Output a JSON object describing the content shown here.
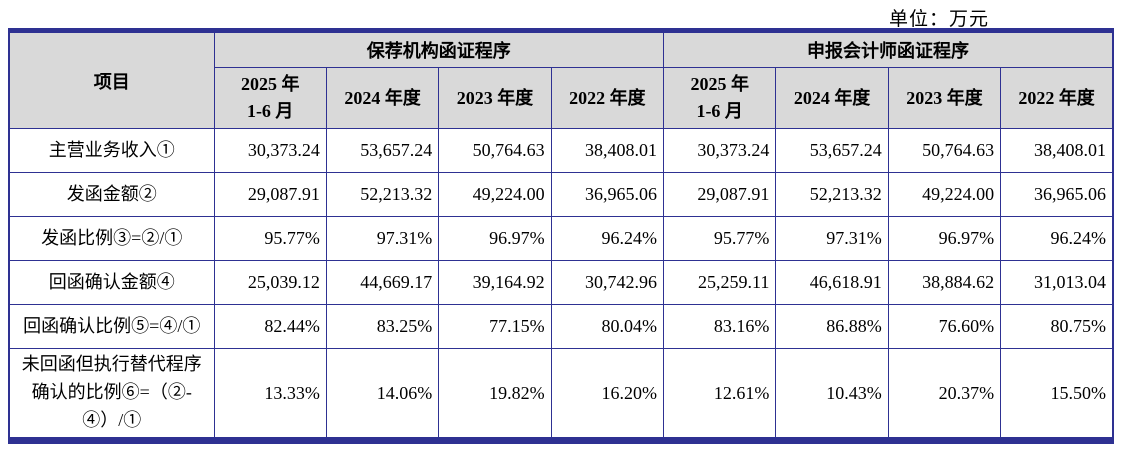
{
  "unit_label": "单位：万元",
  "table": {
    "item_header": "项目",
    "groups": [
      {
        "label": "保荐机构函证程序",
        "periods": [
          "2025 年\n1-6 月",
          "2024 年度",
          "2023 年度",
          "2022 年度"
        ]
      },
      {
        "label": "申报会计师函证程序",
        "periods": [
          "2025 年\n1-6 月",
          "2024 年度",
          "2023 年度",
          "2022 年度"
        ]
      }
    ],
    "rows": [
      {
        "label": "主营业务收入①",
        "values": [
          "30,373.24",
          "53,657.24",
          "50,764.63",
          "38,408.01",
          "30,373.24",
          "53,657.24",
          "50,764.63",
          "38,408.01"
        ]
      },
      {
        "label": "发函金额②",
        "values": [
          "29,087.91",
          "52,213.32",
          "49,224.00",
          "36,965.06",
          "29,087.91",
          "52,213.32",
          "49,224.00",
          "36,965.06"
        ]
      },
      {
        "label": "发函比例③=②/①",
        "values": [
          "95.77%",
          "97.31%",
          "96.97%",
          "96.24%",
          "95.77%",
          "97.31%",
          "96.97%",
          "96.24%"
        ]
      },
      {
        "label": "回函确认金额④",
        "values": [
          "25,039.12",
          "44,669.17",
          "39,164.92",
          "30,742.96",
          "25,259.11",
          "46,618.91",
          "38,884.62",
          "31,013.04"
        ]
      },
      {
        "label": "回函确认比例⑤=④/①",
        "values": [
          "82.44%",
          "83.25%",
          "77.15%",
          "80.04%",
          "83.16%",
          "86.88%",
          "76.60%",
          "80.75%"
        ]
      },
      {
        "label": "未回函但执行替代程序确认的比例⑥=（②-④）/①",
        "values": [
          "13.33%",
          "14.06%",
          "19.82%",
          "16.20%",
          "12.61%",
          "10.43%",
          "20.37%",
          "15.50%"
        ]
      }
    ]
  }
}
